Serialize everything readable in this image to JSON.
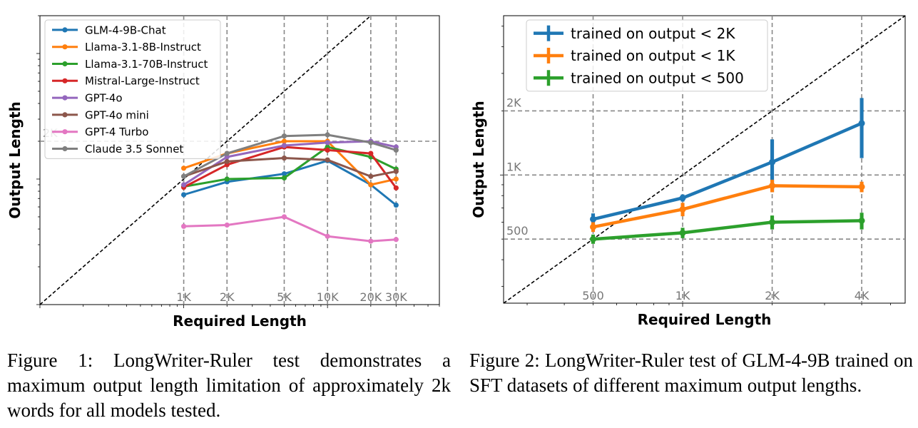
{
  "chart_data": [
    {
      "type": "line",
      "xlabel": "Required Length",
      "ylabel": "Output Length",
      "x": [
        1000,
        2000,
        5000,
        10000,
        20000,
        30000
      ],
      "x_ticklabels": [
        "1K",
        "2K",
        "5K",
        "10K",
        "20K",
        "30K"
      ],
      "y_ticks": [
        2000
      ],
      "y_ticklabels": [
        "2K"
      ],
      "x_scale": "log",
      "y_scale": "log",
      "xlim": [
        100,
        60000
      ],
      "ylim": [
        100,
        20000
      ],
      "grid": "dashed at ticks",
      "diagonal_reference": true,
      "legend_position": "upper-left",
      "series": [
        {
          "name": "GLM-4-9B-Chat",
          "color": "#1f77b4",
          "values": [
            750,
            950,
            1100,
            1400,
            900,
            620
          ]
        },
        {
          "name": "Llama-3.1-8B-Instruct",
          "color": "#ff7f0e",
          "values": [
            1220,
            1600,
            2000,
            2000,
            900,
            1000
          ]
        },
        {
          "name": "Llama-3.1-70B-Instruct",
          "color": "#2ca02c",
          "values": [
            870,
            1000,
            1020,
            1800,
            1500,
            1200
          ]
        },
        {
          "name": "Mistral-Large-Instruct",
          "color": "#d62728",
          "values": [
            860,
            1300,
            1800,
            1700,
            1600,
            850
          ]
        },
        {
          "name": "GPT-4o",
          "color": "#9467bd",
          "values": [
            900,
            1500,
            1850,
            1950,
            2000,
            1800
          ]
        },
        {
          "name": "GPT-4o mini",
          "color": "#8c564b",
          "values": [
            1050,
            1380,
            1470,
            1420,
            1050,
            1150
          ]
        },
        {
          "name": "GPT-4 Turbo",
          "color": "#e377c2",
          "values": [
            420,
            430,
            500,
            350,
            320,
            330
          ]
        },
        {
          "name": "Claude 3.5 Sonnet",
          "color": "#7f7f7f",
          "values": [
            1050,
            1600,
            2200,
            2250,
            1950,
            1700
          ]
        }
      ]
    },
    {
      "type": "line",
      "xlabel": "Required Length",
      "ylabel": "Output Length",
      "x": [
        500,
        1000,
        2000,
        4000
      ],
      "x_ticklabels": [
        "500",
        "1K",
        "2K",
        "4K"
      ],
      "y_ticks": [
        500,
        1000,
        2000
      ],
      "y_ticklabels": [
        "500",
        "1K",
        "2K"
      ],
      "x_scale": "log",
      "y_scale": "log",
      "xlim": [
        250,
        5600
      ],
      "ylim": [
        250,
        5600
      ],
      "grid": "dashed at ticks",
      "diagonal_reference": true,
      "legend_position": "upper-left",
      "series": [
        {
          "name": "trained on output < 2K",
          "color": "#1f77b4",
          "values": [
            620,
            780,
            1150,
            1750
          ],
          "errors": [
            40,
            30,
            320,
            550
          ]
        },
        {
          "name": "trained on output < 1K",
          "color": "#ff7f0e",
          "values": [
            570,
            690,
            890,
            880
          ],
          "errors": [
            30,
            50,
            60,
            50
          ]
        },
        {
          "name": "trained on output < 500",
          "color": "#2ca02c",
          "values": [
            500,
            535,
            600,
            610
          ],
          "errors": [
            25,
            30,
            45,
            55
          ]
        }
      ]
    }
  ],
  "captions": {
    "fig1": "Figure 1: LongWriter-Ruler test demonstrates a maximum output length limitation of approximately 2k words for all models tested.",
    "fig2": "Figure 2: LongWriter-Ruler test of GLM-4-9B trained on SFT datasets of different maximum output lengths."
  }
}
